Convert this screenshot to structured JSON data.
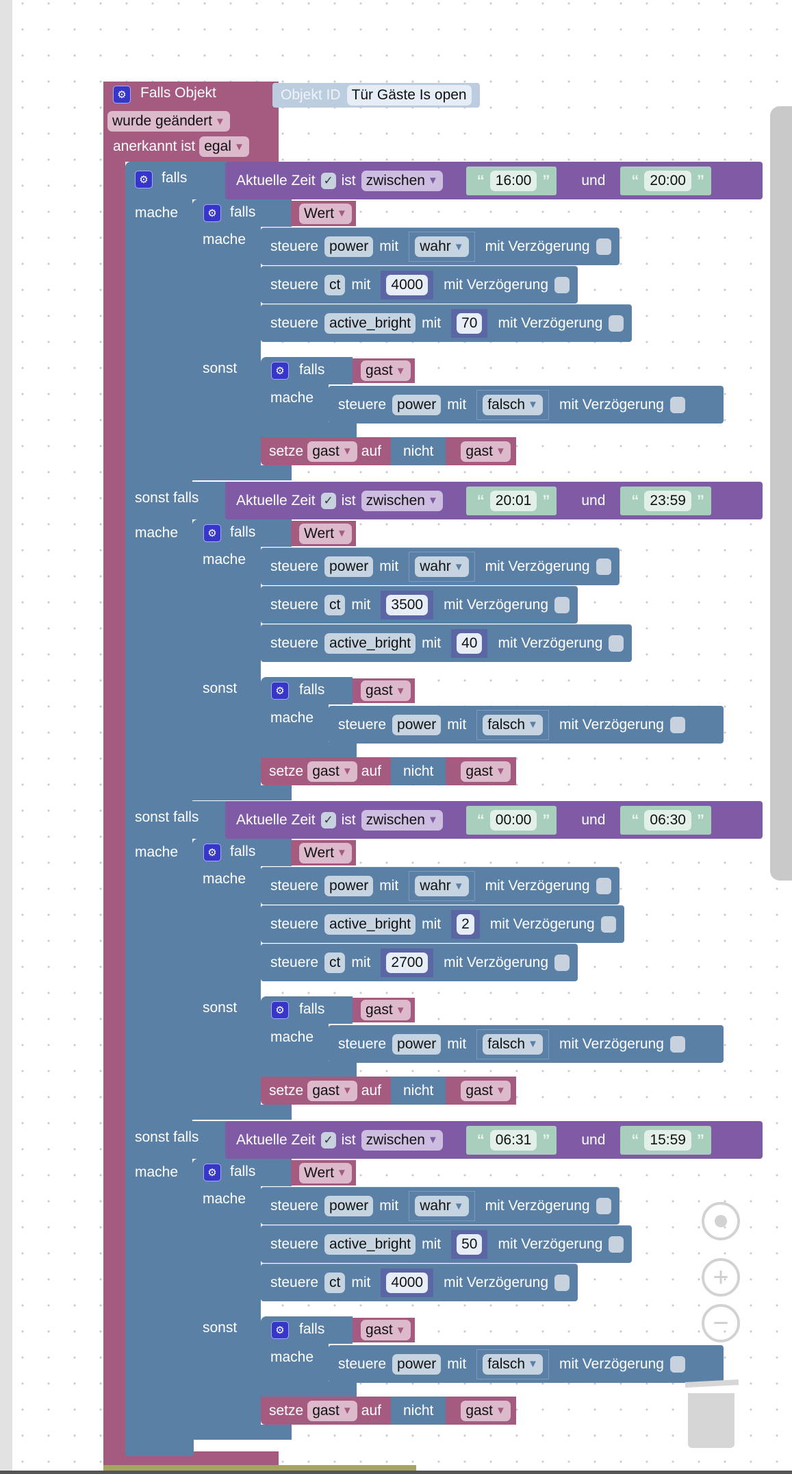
{
  "colors": {
    "event": "#a55b80",
    "logic": "#5b80a5",
    "time": "#805ba5",
    "number": "#5b67a5",
    "text": "#a8cfbb"
  },
  "labels": {
    "falls": "falls",
    "sonst_falls": "sonst falls",
    "mache": "mache",
    "sonst": "sonst",
    "current_time": "Aktuelle Zeit",
    "ist": "ist",
    "und": "und",
    "steuere": "steuere",
    "mit": "mit",
    "delay": "mit Verzögerung",
    "setze": "setze",
    "auf": "auf",
    "nicht": "nicht",
    "checkmark": "✓",
    "quote_open": "“",
    "quote_close": "”",
    "dropdown": "▼",
    "gear": "⚙"
  },
  "hat": {
    "title": "Falls Objekt",
    "object_id_label": "Objekt ID",
    "object_id": "Tür Gäste Is open",
    "trigger": "wurde geändert",
    "ack_label": "anerkannt ist",
    "ack": "egal"
  },
  "sections": [
    {
      "keyword": "falls",
      "operator": "zwischen",
      "from": "16:00",
      "to": "20:00",
      "condition_var": "Wert",
      "statements": [
        {
          "device": "power",
          "value": "wahr",
          "kind": "bool"
        },
        {
          "device": "ct",
          "value": "4000",
          "kind": "number"
        },
        {
          "device": "active_bright",
          "value": "70",
          "kind": "number"
        }
      ],
      "guest": {
        "var": "gast",
        "device": "power",
        "value": "falsch",
        "set_var": "gast",
        "not_var": "gast"
      }
    },
    {
      "keyword": "sonst falls",
      "operator": "zwischen",
      "from": "20:01",
      "to": "23:59",
      "condition_var": "Wert",
      "statements": [
        {
          "device": "power",
          "value": "wahr",
          "kind": "bool"
        },
        {
          "device": "ct",
          "value": "3500",
          "kind": "number"
        },
        {
          "device": "active_bright",
          "value": "40",
          "kind": "number"
        }
      ],
      "guest": {
        "var": "gast",
        "device": "power",
        "value": "falsch",
        "set_var": "gast",
        "not_var": "gast"
      }
    },
    {
      "keyword": "sonst falls",
      "operator": "zwischen",
      "from": "00:00",
      "to": "06:30",
      "condition_var": "Wert",
      "statements": [
        {
          "device": "power",
          "value": "wahr",
          "kind": "bool"
        },
        {
          "device": "active_bright",
          "value": "2",
          "kind": "number"
        },
        {
          "device": "ct",
          "value": "2700",
          "kind": "number"
        }
      ],
      "guest": {
        "var": "gast",
        "device": "power",
        "value": "falsch",
        "set_var": "gast",
        "not_var": "gast"
      }
    },
    {
      "keyword": "sonst falls",
      "operator": "zwischen",
      "from": "06:31",
      "to": "15:59",
      "condition_var": "Wert",
      "statements": [
        {
          "device": "power",
          "value": "wahr",
          "kind": "bool"
        },
        {
          "device": "active_bright",
          "value": "50",
          "kind": "number"
        },
        {
          "device": "ct",
          "value": "4000",
          "kind": "number"
        }
      ],
      "guest": {
        "var": "gast",
        "device": "power",
        "value": "falsch",
        "set_var": "gast",
        "not_var": "gast"
      }
    }
  ],
  "workspace_controls": {
    "recenter_icon": "crosshair-icon",
    "zoom_in": "+",
    "zoom_out": "−",
    "trash_icon": "trash-icon"
  }
}
